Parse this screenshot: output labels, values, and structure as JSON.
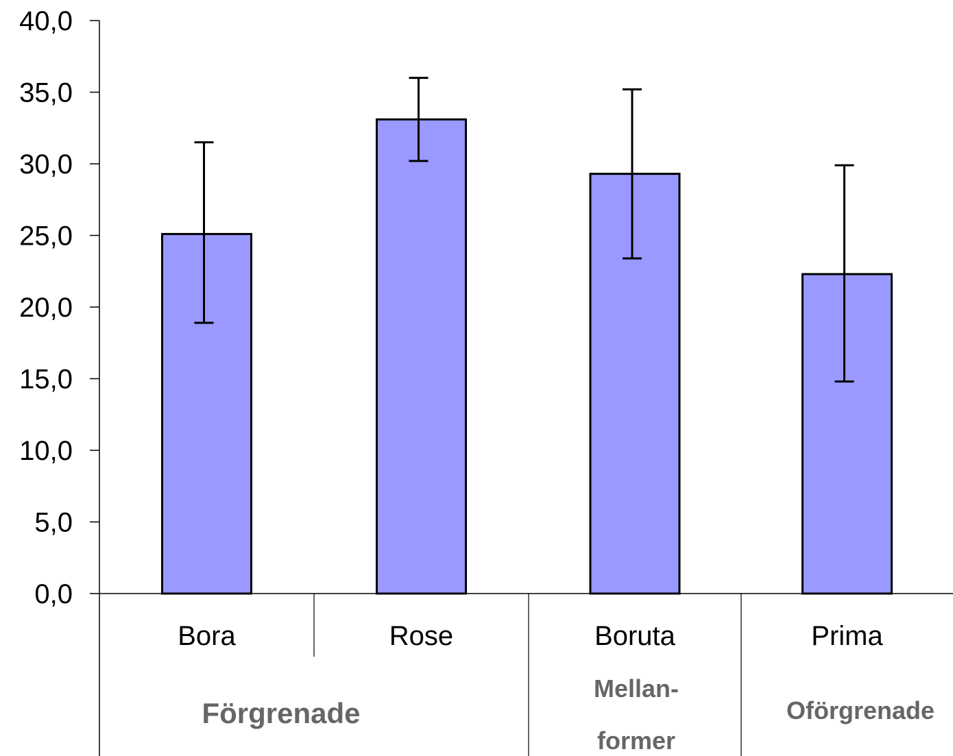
{
  "chart_data": {
    "type": "bar",
    "categories": [
      "Bora",
      "Rose",
      "Boruta",
      "Prima"
    ],
    "values": [
      25.1,
      33.1,
      29.3,
      22.3
    ],
    "error_high": [
      31.5,
      36.0,
      35.2,
      29.9
    ],
    "error_low": [
      18.9,
      30.2,
      23.4,
      14.8
    ],
    "groups": [
      {
        "label_lines": [
          "Förgrenade"
        ],
        "categories": [
          "Bora",
          "Rose"
        ]
      },
      {
        "label_lines": [
          "Mellan-",
          "former"
        ],
        "categories": [
          "Boruta"
        ]
      },
      {
        "label_lines": [
          "Oförgrenade"
        ],
        "categories": [
          "Prima"
        ]
      }
    ],
    "y_ticks": [
      "0,0",
      "5,0",
      "10,0",
      "15,0",
      "20,0",
      "25,0",
      "30,0",
      "35,0",
      "40,0"
    ],
    "ylim": [
      0,
      40
    ],
    "grid": false,
    "legend": "none",
    "colors": {
      "bar_fill": "#9999ff",
      "bar_stroke": "#000000",
      "axis": "#000000",
      "group_text": "#666666"
    }
  }
}
